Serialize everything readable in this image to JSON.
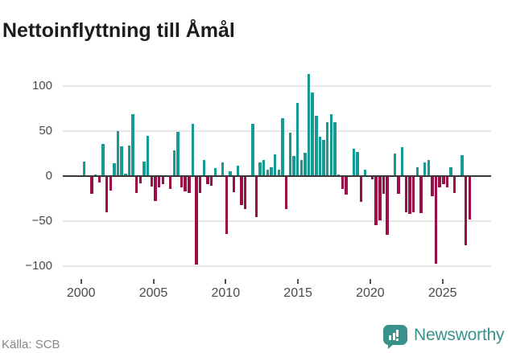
{
  "title": "Nettoinflyttning till Åmål",
  "source": "Källa: SCB",
  "logo": {
    "text": "Newsworthy",
    "icon": "bar-chart-speech-bubble-icon",
    "color": "#39918c"
  },
  "chart_data": {
    "type": "bar",
    "title": "Nettoinflyttning till Åmål",
    "xlabel": "",
    "ylabel": "",
    "period": "quarterly",
    "start": "2000Q1",
    "x_tick_labels": [
      "2000",
      "2005",
      "2010",
      "2015",
      "2020",
      "2025"
    ],
    "y_tick_labels": [
      "100",
      "50",
      "0",
      "−50",
      "−100"
    ],
    "y_tick_values": [
      100,
      50,
      0,
      -50,
      -100
    ],
    "ylim": [
      -110,
      120
    ],
    "grid": true,
    "legend": false,
    "colors": {
      "positive": "#169b94",
      "negative": "#9b0f48"
    },
    "series": [
      {
        "name": "Nettoinflyttning per kvartal",
        "values": [
          16,
          0,
          -19,
          2,
          -6,
          36,
          -39,
          -15,
          14,
          50,
          33,
          3,
          34,
          69,
          -18,
          -7,
          16,
          45,
          -11,
          -27,
          -12,
          -8,
          0,
          -13,
          29,
          49,
          -12,
          -16,
          -18,
          58,
          -97,
          -18,
          18,
          -8,
          -10,
          9,
          0,
          15,
          -63,
          5,
          -17,
          12,
          -31,
          -36,
          0,
          58,
          -45,
          15,
          18,
          7,
          10,
          24,
          7,
          64,
          -36,
          48,
          22,
          81,
          18,
          26,
          113,
          93,
          67,
          44,
          40,
          60,
          69,
          60,
          2,
          -13,
          -20,
          0,
          30,
          27,
          -28,
          7,
          0,
          -3,
          -54,
          -48,
          -19,
          -64,
          0,
          25,
          -19,
          32,
          -39,
          -41,
          -39,
          10,
          -40,
          15,
          18,
          -21,
          -96,
          -12,
          -8,
          -12,
          10,
          -18,
          0,
          23,
          -76,
          -47
        ]
      }
    ]
  }
}
